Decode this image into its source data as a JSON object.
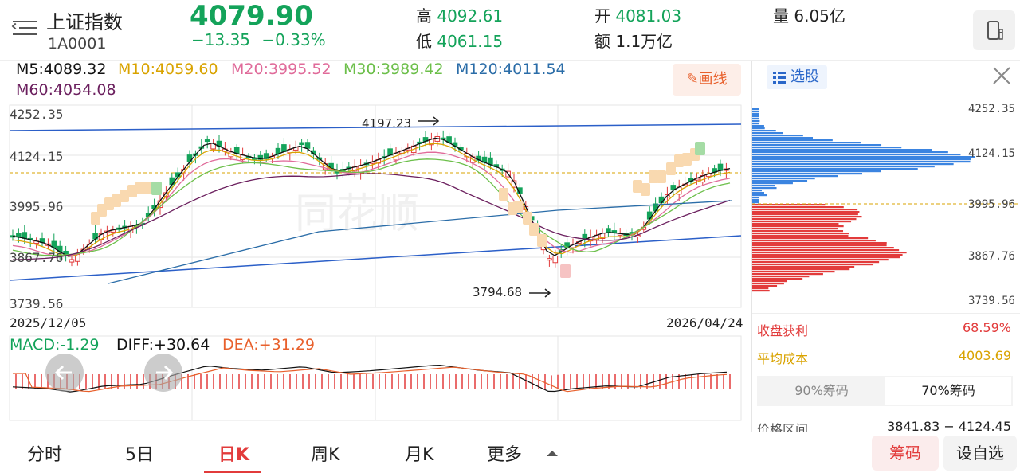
{
  "header": {
    "name": "上证指数",
    "code": "1A0001",
    "price": "4079.90",
    "change": "−13.35",
    "change_pct": "−0.33%",
    "high_label": "高",
    "high": "4092.61",
    "low_label": "低",
    "low": "4061.15",
    "open_label": "开",
    "open": "4081.03",
    "amount_label": "额",
    "amount": "1.1万亿",
    "volume_label": "量",
    "volume": "6.05亿"
  },
  "ma": {
    "m5": "M5:4089.32",
    "m10": "M10:4059.60",
    "m20": "M20:3995.52",
    "m30": "M30:3989.42",
    "m120": "M120:4011.54",
    "m60": "M60:4054.08",
    "draw_label": "画线"
  },
  "axis": {
    "p1": "4252.35",
    "p2": "4124.15",
    "p3": "3995.96",
    "p4": "3867.76",
    "p5": "3739.56",
    "start_date": "2025/12/05",
    "end_date": "2026/04/24",
    "high_mark": "4197.23",
    "low_mark": "3794.68"
  },
  "macd": {
    "macd": "MACD:-1.29",
    "diff": "DIFF:+30.64",
    "dea": "DEA:+31.29"
  },
  "side": {
    "select_label": "选股",
    "p1": "4252.35",
    "p2": "4124.15",
    "p3": "3995.96",
    "p4": "3867.76",
    "p5": "3739.56",
    "profit_label": "收盘获利",
    "profit_value": "68.59%",
    "avg_cost_label": "平均成本",
    "avg_cost_value": "4003.69",
    "chip90": "90%筹码",
    "chip70": "70%筹码",
    "range_label": "价格区间",
    "range_value": "3841.83 − 4124.45"
  },
  "tabs": {
    "t1": "分时",
    "t2": "5日",
    "t3": "日K",
    "t4": "周K",
    "t5": "月K",
    "t6": "更多",
    "chips_btn": "筹码",
    "watch_btn": "设自选"
  },
  "colors": {
    "up": "#e23b3b",
    "down": "#14a35a",
    "m5": "#111111",
    "m10": "#d9a300",
    "m20": "#e06b9a",
    "m30": "#6cbf4a",
    "m120": "#2b6da8",
    "m60": "#6b1f5e"
  },
  "icons": [
    "menu-icon",
    "phone-icon",
    "pencil-icon",
    "select-stock-icon",
    "close-icon",
    "arrow-left-icon",
    "arrow-right-icon",
    "caret-up-icon"
  ]
}
